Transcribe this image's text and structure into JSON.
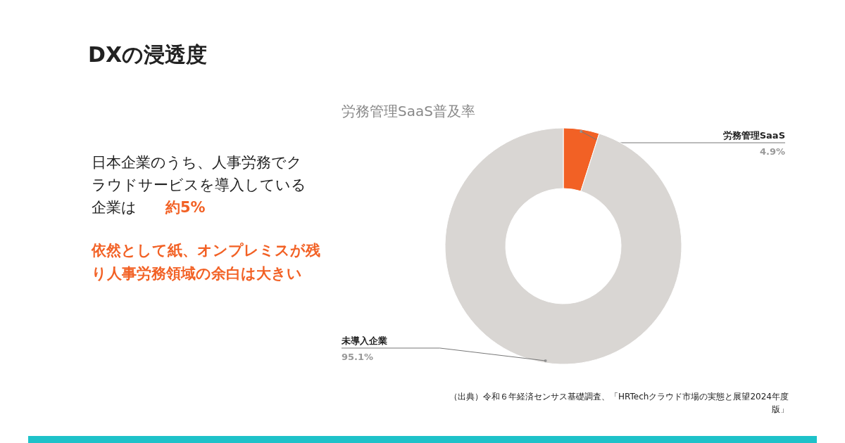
{
  "chart_data": {
    "type": "donut",
    "title": "労務管理SaaS普及率",
    "categories": [
      "労務管理SaaS",
      "未導入企業"
    ],
    "values": [
      4.9,
      95.1
    ],
    "colors": [
      "#f26125",
      "#d9d6d3"
    ],
    "value_labels": [
      "4.9%",
      "95.1%"
    ],
    "annotations": [
      "DXの浸透度",
      "日本企業のうち、人事労務でクラウドサービスを導入している企業は",
      "約5%",
      "依然として紙、オンプレミスが残り人事労務領域の余白は大きい",
      "（出典）令和６年経済センサス基礎調査、「HRTechクラウド市場の実態と展望2024年度版」"
    ]
  }
}
